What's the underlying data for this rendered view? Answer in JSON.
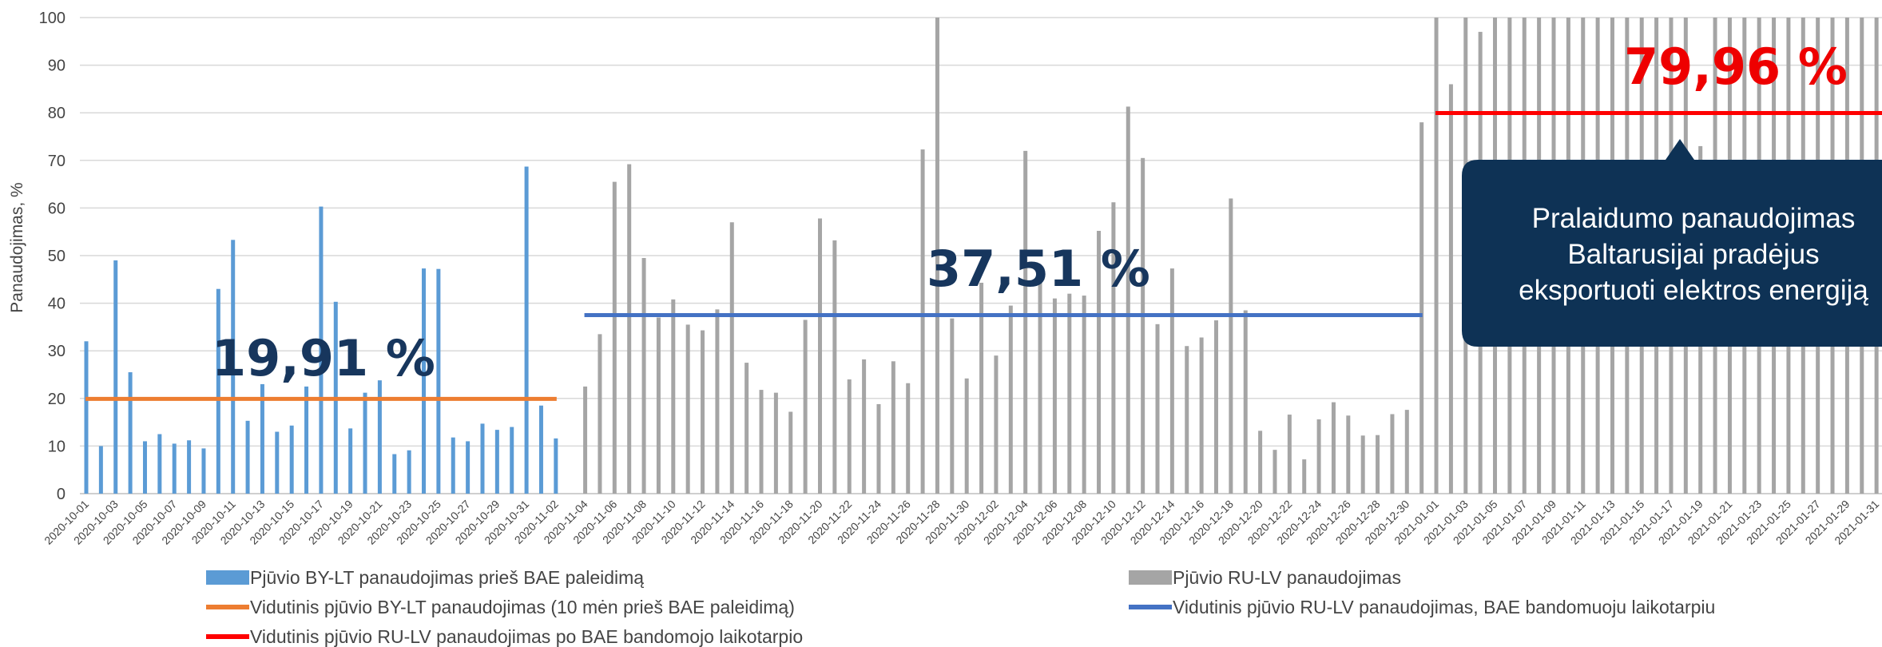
{
  "chart_data": {
    "type": "bar",
    "ylabel": "Panaudojimas, %",
    "ylim": [
      0,
      100
    ],
    "yticks": [
      0,
      10,
      20,
      30,
      40,
      50,
      60,
      70,
      80,
      90,
      100
    ],
    "grid": "horizontal",
    "legend_position": "bottom",
    "x_tick_labels": [
      "2020-10-01",
      "2020-10-03",
      "2020-10-05",
      "2020-10-07",
      "2020-10-09",
      "2020-10-11",
      "2020-10-13",
      "2020-10-15",
      "2020-10-17",
      "2020-10-19",
      "2020-10-21",
      "2020-10-23",
      "2020-10-25",
      "2020-10-27",
      "2020-10-29",
      "2020-10-31",
      "2020-11-02",
      "2020-11-04",
      "2020-11-06",
      "2020-11-08",
      "2020-11-10",
      "2020-11-12",
      "2020-11-14",
      "2020-11-16",
      "2020-11-18",
      "2020-11-20",
      "2020-11-22",
      "2020-11-24",
      "2020-11-26",
      "2020-11-28",
      "2020-11-30",
      "2020-12-02",
      "2020-12-04",
      "2020-12-06",
      "2020-12-08",
      "2020-12-10",
      "2020-12-12",
      "2020-12-14",
      "2020-12-16",
      "2020-12-18",
      "2020-12-20",
      "2020-12-22",
      "2020-12-24",
      "2020-12-26",
      "2020-12-28",
      "2020-12-30",
      "2021-01-01",
      "2021-01-03",
      "2021-01-05",
      "2021-01-07",
      "2021-01-09",
      "2021-01-11",
      "2021-01-13",
      "2021-01-15",
      "2021-01-17",
      "2021-01-19",
      "2021-01-21",
      "2021-01-23",
      "2021-01-25",
      "2021-01-27",
      "2021-01-29",
      "2021-01-31"
    ],
    "series": [
      {
        "name": "Pjūvio BY-LT panaudojimas prieš BAE paleidimą",
        "color": "#5b9bd5",
        "start_date": "2020-10-01",
        "values": [
          32,
          10,
          49,
          25.5,
          11,
          12.5,
          10.5,
          11.2,
          9.5,
          43,
          53.3,
          15.3,
          23,
          13,
          14.3,
          22.5,
          60.3,
          40.3,
          13.7,
          21.2,
          23.8,
          8.3,
          9.1,
          47.3,
          47.2,
          11.8,
          11,
          14.7,
          13.4,
          14,
          68.7,
          18.5,
          11.6
        ]
      },
      {
        "name": "Pjūvio RU-LV panaudojimas",
        "color": "#a5a5a5",
        "start_date": "2020-11-03",
        "values": [
          null,
          22.5,
          33.5,
          65.5,
          69.2,
          49.5,
          37,
          40.8,
          35.5,
          34.3,
          38.7,
          57,
          27.5,
          21.8,
          21.2,
          17.2,
          36.5,
          57.8,
          53.2,
          24,
          28.2,
          18.8,
          27.8,
          23.2,
          72.3,
          100,
          36.8,
          24.2,
          44.3,
          29,
          39.5,
          72,
          46.5,
          41,
          42,
          41.6,
          55.2,
          61.2,
          81.3,
          70.5,
          35.6,
          47.3,
          31,
          32.8,
          36.4,
          62,
          38.5,
          13.2,
          9.2,
          16.6,
          7.2,
          15.6,
          19.2,
          16.4,
          12.2,
          12.3,
          16.7,
          17.6,
          78,
          100,
          86,
          100,
          97,
          100,
          100,
          100,
          100,
          100,
          100,
          100,
          100,
          100,
          100,
          100,
          100,
          100,
          100,
          73,
          100,
          100,
          100,
          100,
          100,
          100,
          100,
          100,
          100,
          100,
          100,
          100,
          100,
          100,
          100,
          100
        ]
      }
    ],
    "averages": [
      {
        "name": "Vidutinis pjūvio BY-LT panaudojimas (10 mėn prieš BAE paleidimą)",
        "value": 19.91,
        "label": "19,91 %",
        "color": "#ed7d31",
        "from": "2020-10-01",
        "to": "2020-11-02"
      },
      {
        "name": "Vidutinis pjūvio RU-LV panaudojimas, BAE bandomuoju laikotarpiu",
        "value": 37.51,
        "label": "37,51 %",
        "color": "#4472c4",
        "from": "2020-11-04",
        "to": "2020-12-31"
      },
      {
        "name": "Vidutinis pjūvio RU-LV panaudojimas po BAE bandomojo laikotarpio",
        "value": 79.96,
        "label": "79,96 %",
        "color": "#ff0000",
        "from": "2021-01-01",
        "to": "2021-01-31"
      }
    ],
    "callout": {
      "lines": [
        "Pralaidumo panaudojimas",
        "Baltarusijai pradėjus",
        "eksportuoti elektros energiją"
      ],
      "color": "#0e3255"
    }
  }
}
